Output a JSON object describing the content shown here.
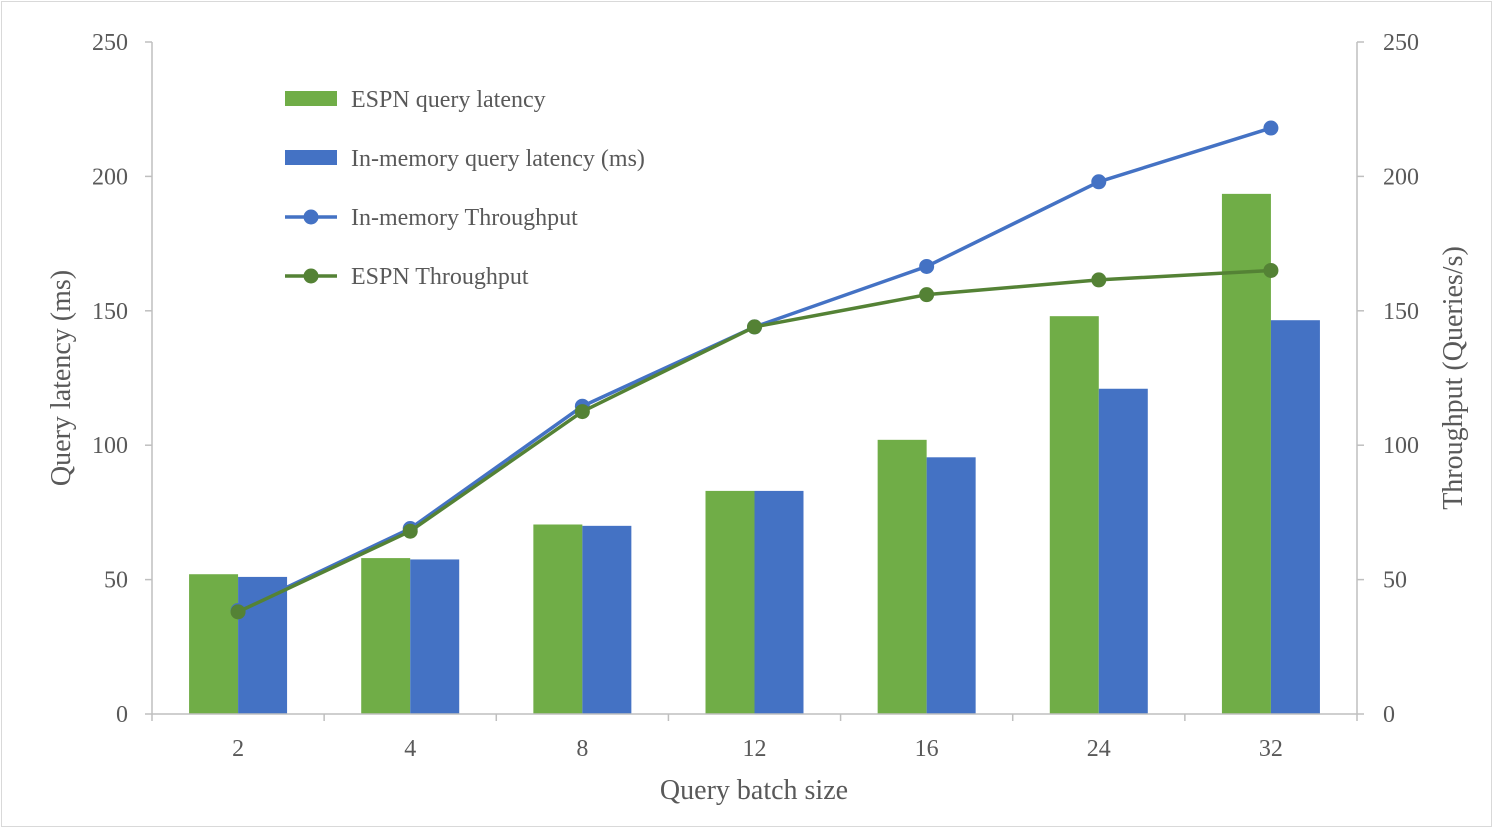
{
  "chart_data": {
    "type": "bar",
    "categories": [
      "2",
      "4",
      "8",
      "12",
      "16",
      "24",
      "32"
    ],
    "series": [
      {
        "name": "ESPN query latency",
        "kind": "bar",
        "axis": "left",
        "color": "#70ad47",
        "values": [
          52,
          58,
          70.5,
          83,
          102,
          148,
          193.5
        ]
      },
      {
        "name": "In-memory query latency (ms)",
        "kind": "bar",
        "axis": "left",
        "color": "#4472c4",
        "values": [
          51,
          57.5,
          70,
          83,
          95.5,
          121,
          146.5
        ]
      },
      {
        "name": "In-memory Throughput",
        "kind": "line",
        "axis": "right",
        "color": "#4472c4",
        "values": [
          38.5,
          69,
          114.5,
          144,
          166.5,
          198,
          218
        ]
      },
      {
        "name": "ESPN Throughput",
        "kind": "line",
        "axis": "right",
        "color": "#548235",
        "values": [
          38,
          68,
          112.5,
          144,
          156,
          161.5,
          165
        ]
      }
    ],
    "xlabel": "Query batch size",
    "ylabel": "Query latency (ms)",
    "y2label": "Throughput (Queries/s)",
    "ylim": [
      0,
      250
    ],
    "y2lim": [
      0,
      250
    ],
    "yticks": [
      "0",
      "50",
      "100",
      "150",
      "200",
      "250"
    ],
    "y2ticks": [
      "0",
      "50",
      "100",
      "150",
      "200",
      "250"
    ],
    "grid": false,
    "legend_position": "top-left"
  }
}
